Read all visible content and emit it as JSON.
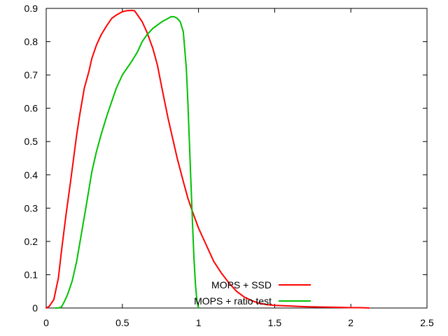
{
  "chart_data": {
    "type": "line",
    "title": "",
    "xlabel": "",
    "ylabel": "",
    "xlim": [
      0,
      2.5
    ],
    "ylim": [
      0,
      0.9
    ],
    "x_ticks": [
      0,
      0.5,
      1,
      1.5,
      2,
      2.5
    ],
    "x_tick_labels": [
      "0",
      "0.5",
      "1",
      "1.5",
      "2",
      "2.5"
    ],
    "y_ticks": [
      0,
      0.1,
      0.2,
      0.3,
      0.4,
      0.5,
      0.6,
      0.7,
      0.8,
      0.9
    ],
    "y_tick_labels": [
      "0",
      "0.1",
      "0.2",
      "0.3",
      "0.4",
      "0.5",
      "0.6",
      "0.7",
      "0.8",
      "0.9"
    ],
    "grid": false,
    "legend_position": "bottom-right",
    "series": [
      {
        "name": "MOPS + SSD",
        "color": "#ff0000",
        "x": [
          0,
          0.02,
          0.05,
          0.08,
          0.1,
          0.13,
          0.16,
          0.2,
          0.22,
          0.25,
          0.28,
          0.3,
          0.33,
          0.36,
          0.4,
          0.43,
          0.46,
          0.5,
          0.53,
          0.56,
          0.58,
          0.6,
          0.63,
          0.66,
          0.7,
          0.73,
          0.76,
          0.8,
          0.83,
          0.86,
          0.9,
          0.93,
          0.96,
          1.0,
          1.05,
          1.1,
          1.15,
          1.2,
          1.25,
          1.3,
          1.35,
          1.4,
          1.45,
          1.5,
          1.6,
          1.7,
          1.8,
          1.9,
          2.0,
          2.05,
          2.1,
          2.12
        ],
        "y": [
          0,
          0.005,
          0.025,
          0.09,
          0.17,
          0.28,
          0.38,
          0.52,
          0.58,
          0.66,
          0.71,
          0.75,
          0.79,
          0.82,
          0.85,
          0.87,
          0.88,
          0.89,
          0.893,
          0.894,
          0.893,
          0.88,
          0.86,
          0.83,
          0.78,
          0.73,
          0.66,
          0.57,
          0.51,
          0.45,
          0.38,
          0.33,
          0.29,
          0.24,
          0.19,
          0.14,
          0.105,
          0.075,
          0.05,
          0.033,
          0.022,
          0.014,
          0.01,
          0.008,
          0.006,
          0.004,
          0.003,
          0.002,
          0.001,
          0.001,
          0.0005,
          0
        ]
      },
      {
        "name": "MOPS + ratio test",
        "color": "#00c000",
        "x": [
          0.06,
          0.08,
          0.1,
          0.12,
          0.14,
          0.17,
          0.2,
          0.23,
          0.26,
          0.3,
          0.33,
          0.36,
          0.4,
          0.43,
          0.46,
          0.5,
          0.53,
          0.56,
          0.6,
          0.63,
          0.66,
          0.7,
          0.73,
          0.76,
          0.8,
          0.82,
          0.84,
          0.86,
          0.88,
          0.9,
          0.92,
          0.93,
          0.94,
          0.95,
          0.96,
          0.97,
          0.98,
          0.99,
          1.0
        ],
        "y": [
          0,
          0,
          0.003,
          0.02,
          0.04,
          0.08,
          0.14,
          0.22,
          0.3,
          0.41,
          0.47,
          0.52,
          0.58,
          0.62,
          0.66,
          0.7,
          0.72,
          0.74,
          0.77,
          0.8,
          0.82,
          0.84,
          0.85,
          0.86,
          0.87,
          0.875,
          0.875,
          0.87,
          0.86,
          0.83,
          0.72,
          0.62,
          0.5,
          0.38,
          0.26,
          0.15,
          0.07,
          0.02,
          0
        ]
      }
    ]
  }
}
